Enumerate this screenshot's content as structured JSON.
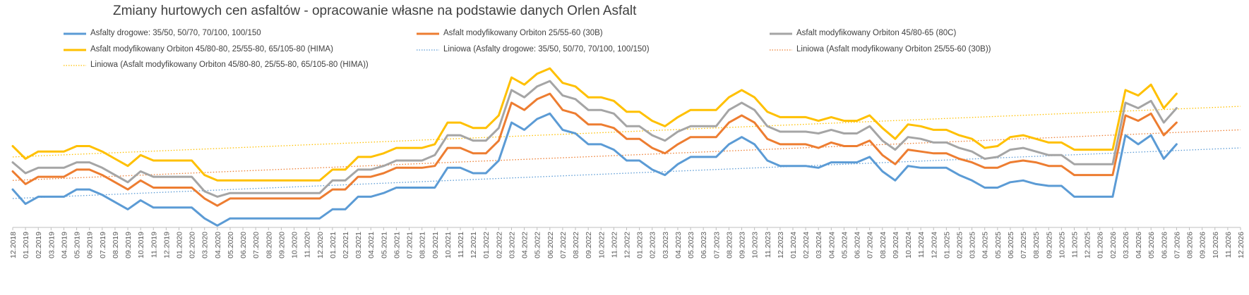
{
  "chart_data": {
    "type": "line",
    "title": "Zmiany hurtowych cen asfaltów - opracowanie własne na podstawie danych Orlen Asfalt",
    "xlabel": "",
    "ylabel": "",
    "grid": false,
    "legend_placement": "top",
    "x": [
      "12.2018",
      "01.2019",
      "02.2019",
      "03.2019",
      "04.2019",
      "05.2019",
      "06.2019",
      "07.2019",
      "08.2019",
      "09.2019",
      "10.2019",
      "11.2019",
      "12.2019",
      "01.2020",
      "02.2020",
      "03.2020",
      "04.2020",
      "05.2020",
      "06.2020",
      "07.2020",
      "08.2020",
      "09.2020",
      "10.2020",
      "11.2020",
      "12.2020",
      "01.2021",
      "02.2021",
      "03.2021",
      "04.2021",
      "05.2021",
      "06.2021",
      "07.2021",
      "08.2021",
      "09.2021",
      "10.2021",
      "11.2021",
      "12.2021",
      "01.2022",
      "02.2022",
      "03.2022",
      "04.2022",
      "05.2022",
      "06.2022",
      "07.2022",
      "08.2022",
      "09.2022",
      "10.2022",
      "11.2022",
      "12.2022",
      "01.2023",
      "02.2023",
      "03.2023",
      "04.2023",
      "05.2023",
      "06.2023",
      "07.2023",
      "08.2023",
      "09.2023",
      "10.2023",
      "11.2023",
      "12.2023",
      "01.2024",
      "02.2024",
      "03.2024",
      "04.2024",
      "05.2024",
      "06.2024",
      "07.2024",
      "08.2024",
      "09.2024",
      "10.2024",
      "11.2024",
      "12.2024",
      "01.2025",
      "02.2025",
      "03.2025",
      "04.2025",
      "05.2025",
      "06.2025",
      "07.2025",
      "08.2025",
      "09.2025",
      "10.2025",
      "11.2025",
      "12.2025",
      "01.2026",
      "02.2026",
      "03.2026",
      "04.2026",
      "05.2026",
      "06.2026",
      "07.2026",
      "08.2026",
      "09.2026",
      "10.2026",
      "11.2026",
      "12.2026"
    ],
    "ylim": [
      -0.5,
      8.5
    ],
    "series": [
      {
        "name": "Asfalty drogowe: 35/50, 50/70, 70/100, 100/150",
        "color": "#5B9BD5",
        "values": [
          1.6,
          0.8,
          1.2,
          1.2,
          1.2,
          1.6,
          1.6,
          1.3,
          0.9,
          0.5,
          1.0,
          0.6,
          0.6,
          0.6,
          0.6,
          0.0,
          -0.4,
          0.0,
          0.0,
          0.0,
          0.0,
          0.0,
          0.0,
          0.0,
          0.0,
          0.5,
          0.5,
          1.2,
          1.2,
          1.4,
          1.7,
          1.7,
          1.7,
          1.7,
          2.8,
          2.8,
          2.5,
          2.5,
          3.2,
          5.3,
          4.9,
          5.5,
          5.8,
          4.9,
          4.7,
          4.1,
          4.1,
          3.8,
          3.2,
          3.2,
          2.7,
          2.4,
          3.0,
          3.4,
          3.4,
          3.4,
          4.1,
          4.5,
          4.1,
          3.2,
          2.9,
          2.9,
          2.9,
          2.8,
          3.1,
          3.1,
          3.1,
          3.4,
          2.6,
          2.1,
          2.9,
          2.8,
          2.8,
          2.8,
          2.4,
          2.1,
          1.7,
          1.7,
          2.0,
          2.1,
          1.9,
          1.8,
          1.8,
          1.2,
          1.2,
          1.2,
          1.2,
          4.6,
          4.1,
          4.6,
          3.3,
          4.1,
          null,
          null,
          null,
          null,
          null
        ]
      },
      {
        "name": "Asfalt modyfikowany Orbiton 25/55-60 (30B)",
        "color": "#ED7D31",
        "values": [
          2.6,
          1.9,
          2.3,
          2.3,
          2.3,
          2.7,
          2.7,
          2.4,
          2.0,
          1.6,
          2.1,
          1.7,
          1.7,
          1.7,
          1.7,
          1.1,
          0.7,
          1.1,
          1.1,
          1.1,
          1.1,
          1.1,
          1.1,
          1.1,
          1.1,
          1.6,
          1.6,
          2.3,
          2.3,
          2.5,
          2.8,
          2.8,
          2.8,
          2.9,
          3.9,
          3.9,
          3.6,
          3.6,
          4.3,
          6.4,
          6.0,
          6.6,
          6.9,
          6.0,
          5.8,
          5.2,
          5.2,
          5.0,
          4.4,
          4.4,
          3.9,
          3.6,
          4.1,
          4.5,
          4.5,
          4.5,
          5.3,
          5.7,
          5.3,
          4.4,
          4.1,
          4.1,
          4.1,
          3.9,
          4.2,
          4.0,
          4.0,
          4.3,
          3.5,
          3.0,
          3.8,
          3.7,
          3.6,
          3.6,
          3.3,
          3.1,
          2.8,
          2.8,
          3.1,
          3.2,
          3.1,
          2.9,
          2.9,
          2.4,
          2.4,
          2.4,
          2.4,
          5.7,
          5.4,
          5.8,
          4.6,
          5.3,
          null,
          null,
          null,
          null,
          null
        ]
      },
      {
        "name": "Asfalt modyfikowany Orbiton 45/80-65 (80C)",
        "color": "#A5A5A5",
        "values": [
          3.1,
          2.5,
          2.8,
          2.8,
          2.8,
          3.1,
          3.1,
          2.8,
          2.4,
          2.0,
          2.6,
          2.3,
          2.3,
          2.3,
          2.3,
          1.5,
          1.2,
          1.4,
          1.4,
          1.4,
          1.4,
          1.4,
          1.4,
          1.4,
          1.4,
          2.1,
          2.1,
          2.7,
          2.7,
          2.9,
          3.2,
          3.2,
          3.2,
          3.5,
          4.6,
          4.6,
          4.3,
          4.3,
          5.0,
          7.1,
          6.7,
          7.3,
          7.6,
          6.8,
          6.6,
          6.0,
          6.0,
          5.8,
          5.1,
          5.1,
          4.6,
          4.3,
          4.8,
          5.1,
          5.1,
          5.1,
          6.0,
          6.4,
          6.0,
          5.1,
          4.8,
          4.8,
          4.8,
          4.7,
          4.9,
          4.7,
          4.7,
          5.1,
          4.3,
          3.8,
          4.5,
          4.4,
          4.2,
          4.2,
          3.9,
          3.7,
          3.3,
          3.4,
          3.8,
          3.9,
          3.7,
          3.5,
          3.5,
          3.0,
          3.0,
          3.0,
          3.0,
          6.4,
          6.1,
          6.5,
          5.3,
          6.1,
          null,
          null,
          null,
          null,
          null
        ]
      },
      {
        "name": "Asfalt modyfikowany Orbiton 45/80-80, 25/55-80, 65/105-80 (HIMA)",
        "color": "#FFC000",
        "values": [
          4.0,
          3.3,
          3.7,
          3.7,
          3.7,
          4.0,
          4.0,
          3.7,
          3.3,
          2.9,
          3.5,
          3.2,
          3.2,
          3.2,
          3.2,
          2.4,
          2.1,
          2.1,
          2.1,
          2.1,
          2.1,
          2.1,
          2.1,
          2.1,
          2.1,
          2.7,
          2.7,
          3.4,
          3.4,
          3.6,
          3.9,
          3.9,
          3.9,
          4.1,
          5.3,
          5.3,
          5.0,
          5.0,
          5.7,
          7.8,
          7.4,
          8.0,
          8.3,
          7.5,
          7.3,
          6.7,
          6.7,
          6.5,
          5.9,
          5.9,
          5.4,
          5.1,
          5.6,
          6.0,
          6.0,
          6.0,
          6.7,
          7.1,
          6.7,
          5.9,
          5.6,
          5.6,
          5.6,
          5.4,
          5.6,
          5.4,
          5.4,
          5.7,
          5.0,
          4.4,
          5.2,
          5.1,
          4.9,
          4.9,
          4.6,
          4.4,
          3.9,
          4.0,
          4.5,
          4.6,
          4.4,
          4.2,
          4.2,
          3.8,
          3.8,
          3.8,
          3.8,
          7.1,
          6.8,
          7.4,
          6.1,
          6.9,
          null,
          null,
          null,
          null,
          null
        ]
      }
    ],
    "trendlines": [
      {
        "name": "Liniowa (Asfalty drogowe: 35/50, 50/70, 70/100, 100/150)",
        "color": "#5B9BD5",
        "style": "dotted",
        "from": 1.1,
        "to": 3.9
      },
      {
        "name": "Liniowa (Asfalt modyfikowany Orbiton 25/55-60 (30B))",
        "color": "#ED7D31",
        "style": "dotted",
        "from": 2.1,
        "to": 4.9
      },
      {
        "name": "Liniowa (Asfalt modyfikowany Orbiton 45/80-80, 25/55-80, 65/105-80 (HIMA))",
        "color": "#FFC000",
        "style": "dotted",
        "from": 3.4,
        "to": 6.2
      }
    ]
  }
}
